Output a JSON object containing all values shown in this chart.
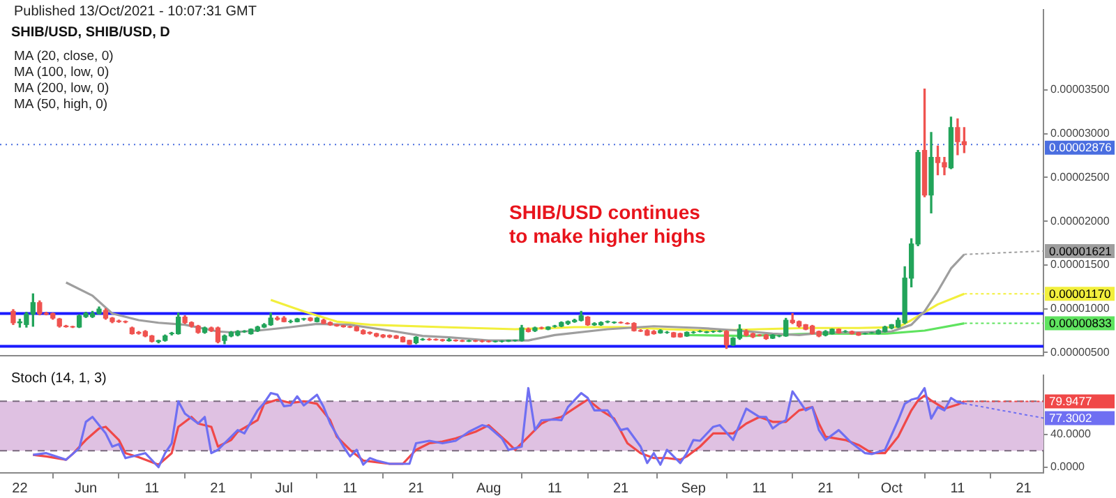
{
  "chart_data": [
    {
      "type": "candlestick",
      "title": "SHIB/USD, SHIB/USD, D",
      "subtitle": "Published 13/Oct/2021 - 10:07:31 GMT",
      "x": [
        "2021-05-21",
        "2021-05-22",
        "2021-05-23",
        "2021-05-24",
        "2021-05-25",
        "2021-05-26",
        "2021-05-27",
        "2021-05-28",
        "2021-05-29",
        "2021-05-30",
        "2021-05-31",
        "2021-06-01",
        "2021-06-02",
        "2021-06-03",
        "2021-06-04",
        "2021-06-05",
        "2021-06-06",
        "2021-06-07",
        "2021-06-08",
        "2021-06-09",
        "2021-06-10",
        "2021-06-11",
        "2021-06-12",
        "2021-06-13",
        "2021-06-14",
        "2021-06-15",
        "2021-06-16",
        "2021-06-17",
        "2021-06-18",
        "2021-06-19",
        "2021-06-20",
        "2021-06-21",
        "2021-06-22",
        "2021-06-23",
        "2021-06-24",
        "2021-06-25",
        "2021-06-26",
        "2021-06-27",
        "2021-06-28",
        "2021-06-29",
        "2021-06-30",
        "2021-07-01",
        "2021-07-02",
        "2021-07-03",
        "2021-07-04",
        "2021-07-05",
        "2021-07-06",
        "2021-07-07",
        "2021-07-08",
        "2021-07-09",
        "2021-07-10",
        "2021-07-11",
        "2021-07-12",
        "2021-07-13",
        "2021-07-14",
        "2021-07-15",
        "2021-07-16",
        "2021-07-17",
        "2021-07-18",
        "2021-07-19",
        "2021-07-20",
        "2021-07-21",
        "2021-07-22",
        "2021-07-23",
        "2021-07-24",
        "2021-07-25",
        "2021-07-26",
        "2021-07-27",
        "2021-07-28",
        "2021-07-29",
        "2021-07-30",
        "2021-07-31",
        "2021-08-01",
        "2021-08-02",
        "2021-08-03",
        "2021-08-04",
        "2021-08-05",
        "2021-08-06",
        "2021-08-07",
        "2021-08-08",
        "2021-08-09",
        "2021-08-10",
        "2021-08-11",
        "2021-08-12",
        "2021-08-13",
        "2021-08-14",
        "2021-08-15",
        "2021-08-16",
        "2021-08-17",
        "2021-08-18",
        "2021-08-19",
        "2021-08-20",
        "2021-08-21",
        "2021-08-22",
        "2021-08-23",
        "2021-08-24",
        "2021-08-25",
        "2021-08-26",
        "2021-08-27",
        "2021-08-28",
        "2021-08-29",
        "2021-08-30",
        "2021-08-31",
        "2021-09-01",
        "2021-09-02",
        "2021-09-03",
        "2021-09-04",
        "2021-09-05",
        "2021-09-06",
        "2021-09-07",
        "2021-09-08",
        "2021-09-09",
        "2021-09-10",
        "2021-09-11",
        "2021-09-12",
        "2021-09-13",
        "2021-09-14",
        "2021-09-15",
        "2021-09-16",
        "2021-09-17",
        "2021-09-18",
        "2021-09-19",
        "2021-09-20",
        "2021-09-21",
        "2021-09-22",
        "2021-09-23",
        "2021-09-24",
        "2021-09-25",
        "2021-09-26",
        "2021-09-27",
        "2021-09-28",
        "2021-09-29",
        "2021-09-30",
        "2021-10-01",
        "2021-10-02",
        "2021-10-03",
        "2021-10-04",
        "2021-10-05",
        "2021-10-06",
        "2021-10-07",
        "2021-10-08",
        "2021-10-09",
        "2021-10-10",
        "2021-10-11",
        "2021-10-12"
      ],
      "ohlc": [
        [
          9.7e-06,
          9.9e-06,
          8.2e-06,
          8.4e-06
        ],
        [
          8.4e-06,
          8.8e-06,
          7.9e-06,
          8.5e-06
        ],
        [
          8.2e-06,
          9.6e-06,
          7.9e-06,
          9.4e-06
        ],
        [
          9.4e-06,
          1.17e-05,
          8e-06,
          1.07e-05
        ],
        [
          1.07e-05,
          1.09e-05,
          9.3e-06,
          9.45e-06
        ],
        [
          9.45e-06,
          9.6e-06,
          9.3e-06,
          9.4e-06
        ],
        [
          9.45e-06,
          9.5e-06,
          8.8e-06,
          8.93e-06
        ],
        [
          8.83e-06,
          8.9e-06,
          7.9e-06,
          8.02e-06
        ],
        [
          8.02e-06,
          8.1e-06,
          7.9e-06,
          7.95e-06
        ],
        [
          7.95e-06,
          8e-06,
          7.85e-06,
          7.92e-06
        ],
        [
          7.91e-06,
          9.3e-06,
          7.85e-06,
          9.19e-06
        ],
        [
          9.1e-06,
          9.6e-06,
          9e-06,
          9.45e-06
        ],
        [
          9.1e-06,
          9.7e-06,
          9e-06,
          9.45e-06
        ],
        [
          9.45e-06,
          1.02e-05,
          9.4e-06,
          9.96e-06
        ],
        [
          9.8e-06,
          1e-05,
          8.8e-06,
          8.93e-06
        ],
        [
          8.93e-06,
          9e-06,
          8.4e-06,
          8.53e-06
        ],
        [
          8.6e-06,
          8.7e-06,
          8.45e-06,
          8.53e-06
        ],
        [
          8.53e-06,
          8.6e-06,
          8.4e-06,
          8.5e-06
        ],
        [
          7.81e-06,
          7.9e-06,
          7.1e-06,
          7.15e-06
        ],
        [
          7.3e-06,
          7.4e-06,
          7.1e-06,
          7.2e-06
        ],
        [
          7.4e-06,
          7.5e-06,
          6.8e-06,
          6.89e-06
        ],
        [
          6.89e-06,
          6.95e-06,
          6.2e-06,
          6.28e-06
        ],
        [
          6.25e-06,
          6.4e-06,
          6.1e-06,
          6.35e-06
        ],
        [
          6.38e-06,
          7e-06,
          6.3e-06,
          6.89e-06
        ],
        [
          7.15e-06,
          7.3e-06,
          7e-06,
          7.2e-06
        ],
        [
          7.15e-06,
          9.5e-06,
          7.1e-06,
          9.04e-06
        ],
        [
          9.04e-06,
          9.2e-06,
          8.3e-06,
          8.42e-06
        ],
        [
          8.42e-06,
          8.5e-06,
          7.9e-06,
          8.02e-06
        ],
        [
          8.02e-06,
          8.1e-06,
          7.2e-06,
          7.3e-06
        ],
        [
          7.3e-06,
          7.9e-06,
          7.2e-06,
          7.81e-06
        ],
        [
          7.81e-06,
          7.9e-06,
          7.4e-06,
          7.5e-06
        ],
        [
          7.81e-06,
          7.9e-06,
          6.1e-06,
          6.23e-06
        ],
        [
          6.38e-06,
          7e-06,
          6e-06,
          6.89e-06
        ],
        [
          6.89e-06,
          7.4e-06,
          6.8e-06,
          7.3e-06
        ],
        [
          7e-06,
          7.5e-06,
          6.9e-06,
          7.4e-06
        ],
        [
          7.4e-06,
          7.5e-06,
          7.3e-06,
          7.4e-06
        ],
        [
          7.15e-06,
          7.7e-06,
          7.1e-06,
          7.66e-06
        ],
        [
          7.5e-06,
          8e-06,
          7.4e-06,
          7.91e-06
        ],
        [
          7.91e-06,
          8.3e-06,
          7.85e-06,
          8.17e-06
        ],
        [
          8.17e-06,
          9.5e-06,
          8.1e-06,
          8.93e-06
        ],
        [
          8.93e-06,
          9.1e-06,
          8.7e-06,
          8.8e-06
        ],
        [
          8.93e-06,
          9.1e-06,
          8.5e-06,
          8.53e-06
        ],
        [
          8.53e-06,
          8.7e-06,
          8.4e-06,
          8.55e-06
        ],
        [
          8.53e-06,
          8.9e-06,
          8.5e-06,
          8.83e-06
        ],
        [
          8.83e-06,
          8.9e-06,
          8.7e-06,
          8.85e-06
        ],
        [
          8.93e-06,
          9e-06,
          8.6e-06,
          8.68e-06
        ],
        [
          8.53e-06,
          9e-06,
          8.5e-06,
          8.93e-06
        ],
        [
          8.68e-06,
          8.8e-06,
          8.3e-06,
          8.32e-06
        ],
        [
          8.42e-06,
          8.5e-06,
          8.1e-06,
          8.17e-06
        ],
        [
          8.17e-06,
          8.2e-06,
          8e-06,
          8.05e-06
        ],
        [
          8.05e-06,
          8.1e-06,
          7.9e-06,
          7.95e-06
        ],
        [
          7.95e-06,
          8e-06,
          7.85e-06,
          7.9e-06
        ],
        [
          7.91e-06,
          8e-06,
          7.45e-06,
          7.5e-06
        ],
        [
          7.5e-06,
          7.6e-06,
          7.1e-06,
          7.15e-06
        ],
        [
          7.3e-06,
          7.35e-06,
          7.1e-06,
          7.2e-06
        ],
        [
          7.15e-06,
          7.2e-06,
          6.8e-06,
          6.89e-06
        ],
        [
          6.99e-06,
          7.05e-06,
          6.7e-06,
          6.79e-06
        ],
        [
          6.94e-06,
          7e-06,
          6.7e-06,
          6.79e-06
        ],
        [
          6.89e-06,
          6.95e-06,
          6.6e-06,
          6.64e-06
        ],
        [
          6.74e-06,
          6.8e-06,
          6.2e-06,
          6.23e-06
        ],
        [
          6.38e-06,
          6.4e-06,
          5.9e-06,
          5.97e-06
        ],
        [
          6.12e-06,
          6.8e-06,
          6e-06,
          6.74e-06
        ],
        [
          6.48e-06,
          6.6e-06,
          6.4e-06,
          6.5e-06
        ],
        [
          6.5e-06,
          6.6e-06,
          6.4e-06,
          6.48e-06
        ],
        [
          6.48e-06,
          6.55e-06,
          6.4e-06,
          6.45e-06
        ],
        [
          6.45e-06,
          6.5e-06,
          6.3e-06,
          6.38e-06
        ],
        [
          6.35e-06,
          6.6e-06,
          6.3e-06,
          6.45e-06
        ],
        [
          6.4e-06,
          6.45e-06,
          6.3e-06,
          6.35e-06
        ],
        [
          6.35e-06,
          6.4e-06,
          6.25e-06,
          6.3e-06
        ],
        [
          6.3e-06,
          6.4e-06,
          6.25e-06,
          6.33e-06
        ],
        [
          6.33e-06,
          6.4e-06,
          6.25e-06,
          6.3e-06
        ],
        [
          6.3e-06,
          6.4e-06,
          6.2e-06,
          6.28e-06
        ],
        [
          6.28e-06,
          6.35e-06,
          6.2e-06,
          6.25e-06
        ],
        [
          6.25e-06,
          6.3e-06,
          6.2e-06,
          6.28e-06
        ],
        [
          6.28e-06,
          6.35e-06,
          6.2e-06,
          6.3e-06
        ],
        [
          6.3e-06,
          6.4e-06,
          6.25e-06,
          6.38e-06
        ],
        [
          6.38e-06,
          6.42e-06,
          6.3e-06,
          6.4e-06
        ],
        [
          6.38e-06,
          8.1e-06,
          6.3e-06,
          7.81e-06
        ],
        [
          7.66e-06,
          7.8e-06,
          7.35e-06,
          7.4e-06
        ],
        [
          7.5e-06,
          7.9e-06,
          7.4e-06,
          7.81e-06
        ],
        [
          7.81e-06,
          7.9e-06,
          7.7e-06,
          7.8e-06
        ],
        [
          7.66e-06,
          7.95e-06,
          7.6e-06,
          7.91e-06
        ],
        [
          8e-06,
          8.1e-06,
          7.9e-06,
          8.02e-06
        ],
        [
          8.02e-06,
          8.5e-06,
          7.95e-06,
          8.42e-06
        ],
        [
          8.32e-06,
          8.6e-06,
          8.2e-06,
          8.53e-06
        ],
        [
          8.53e-06,
          8.8e-06,
          8.45e-06,
          8.68e-06
        ],
        [
          8.68e-06,
          9.7e-06,
          8.6e-06,
          9.19e-06
        ],
        [
          9.04e-06,
          9.1e-06,
          8.1e-06,
          8.17e-06
        ],
        [
          8.17e-06,
          8.4e-06,
          8.1e-06,
          8.3e-06
        ],
        [
          8.17e-06,
          8.5e-06,
          8.1e-06,
          8.42e-06
        ],
        [
          8.5e-06,
          8.6e-06,
          8.4e-06,
          8.53e-06
        ],
        [
          8.42e-06,
          8.5e-06,
          8.35e-06,
          8.45e-06
        ],
        [
          8.42e-06,
          8.5e-06,
          8.35e-06,
          8.4e-06
        ],
        [
          8.32e-06,
          8.4e-06,
          8.25e-06,
          8.3e-06
        ],
        [
          8.32e-06,
          8.4e-06,
          7.45e-06,
          7.5e-06
        ],
        [
          7.5e-06,
          7.6e-06,
          7.4e-06,
          7.45e-06
        ],
        [
          7.5e-06,
          7.6e-06,
          6.95e-06,
          6.99e-06
        ],
        [
          7.4e-06,
          7.5e-06,
          7.1e-06,
          7.15e-06
        ],
        [
          7.25e-06,
          7.6e-06,
          7.2e-06,
          7.5e-06
        ],
        [
          7.3e-06,
          7.4e-06,
          7.2e-06,
          7.3e-06
        ],
        [
          7.25e-06,
          7.3e-06,
          6.75e-06,
          6.79e-06
        ],
        [
          7.15e-06,
          7.2e-06,
          6.75e-06,
          6.79e-06
        ],
        [
          6.89e-06,
          7.35e-06,
          6.85e-06,
          7.3e-06
        ],
        [
          7.3e-06,
          7.4e-06,
          7.2e-06,
          7.3e-06
        ],
        [
          7.4e-06,
          7.5e-06,
          7.35e-06,
          7.4e-06
        ],
        [
          7.3e-06,
          7.4e-06,
          7.25e-06,
          7.35e-06
        ],
        [
          7.4e-06,
          7.45e-06,
          7.3e-06,
          7.4e-06
        ],
        [
          7.4e-06,
          7.5e-06,
          7.35e-06,
          7.42e-06
        ],
        [
          7.4e-06,
          7.5e-06,
          5.46e-06,
          5.87e-06
        ],
        [
          5.87e-06,
          6.7e-06,
          5.8e-06,
          6.64e-06
        ],
        [
          6.64e-06,
          8.17e-06,
          6.5e-06,
          7.66e-06
        ],
        [
          7.4e-06,
          7.6e-06,
          6.9e-06,
          6.99e-06
        ],
        [
          7.15e-06,
          7.2e-06,
          6.7e-06,
          6.79e-06
        ],
        [
          6.99e-06,
          7.05e-06,
          6.9e-06,
          6.95e-06
        ],
        [
          6.99e-06,
          7.05e-06,
          6.5e-06,
          6.59e-06
        ],
        [
          6.64e-06,
          7.05e-06,
          6.6e-06,
          6.99e-06
        ],
        [
          6.89e-06,
          6.95e-06,
          6.8e-06,
          6.9e-06
        ],
        [
          6.89e-06,
          8.9e-06,
          6.85e-06,
          8.68e-06
        ],
        [
          8.68e-06,
          9.45e-06,
          8.3e-06,
          8.42e-06
        ],
        [
          8.53e-06,
          8.6e-06,
          7.9e-06,
          8.02e-06
        ],
        [
          8.17e-06,
          8.2e-06,
          7.6e-06,
          7.66e-06
        ],
        [
          8.02e-06,
          8.1e-06,
          7.1e-06,
          7.15e-06
        ],
        [
          7.4e-06,
          7.45e-06,
          6.8e-06,
          6.89e-06
        ],
        [
          6.99e-06,
          7.5e-06,
          6.9e-06,
          7.4e-06
        ],
        [
          7.15e-06,
          7.7e-06,
          7.1e-06,
          7.66e-06
        ],
        [
          7.66e-06,
          7.7e-06,
          7.2e-06,
          7.25e-06
        ],
        [
          7.4e-06,
          7.5e-06,
          7.3e-06,
          7.4e-06
        ],
        [
          7.4e-06,
          7.45e-06,
          7.1e-06,
          7.15e-06
        ],
        [
          7.25e-06,
          7.3e-06,
          6.95e-06,
          6.99e-06
        ],
        [
          7.15e-06,
          7.2e-06,
          7.1e-06,
          7.15e-06
        ],
        [
          7.25e-06,
          7.3e-06,
          7.2e-06,
          7.25e-06
        ],
        [
          7.15e-06,
          7.6e-06,
          7.1e-06,
          7.5e-06
        ],
        [
          7.4e-06,
          8e-06,
          7.35e-06,
          7.91e-06
        ],
        [
          7.81e-06,
          8.2e-06,
          7.7e-06,
          8.17e-06
        ],
        [
          7.91e-06,
          8.93e-06,
          7.85e-06,
          8.68e-06
        ],
        [
          8.43e-06,
          1.48e-05,
          8.3e-06,
          1.35e-05
        ],
        [
          1.35e-05,
          1.8e-05,
          1.25e-05,
          1.74e-05
        ],
        [
          1.74e-05,
          2.81e-05,
          1.72e-05,
          2.785e-05
        ],
        [
          2.81e-05,
          3.51e-05,
          2.28e-05,
          2.3e-05
        ],
        [
          2.3e-05,
          3.015e-05,
          2.095e-05,
          2.73e-05
        ],
        [
          2.73e-05,
          2.86e-05,
          2.53e-05,
          2.67e-05
        ],
        [
          2.67e-05,
          2.73e-05,
          2.53e-05,
          2.62e-05
        ],
        [
          2.61e-05,
          3.19e-05,
          2.6e-05,
          3.07e-05
        ],
        [
          3.07e-05,
          3.17e-05,
          2.76e-05,
          2.91e-05
        ],
        [
          2.91e-05,
          3.07e-05,
          2.785e-05,
          2.876e-05
        ]
      ],
      "series": [
        {
          "type": "line",
          "color": "#9e9e9e",
          "x": [
            "2021-05-29",
            "2021-06-02",
            "2021-06-05",
            "2021-06-09",
            "2021-06-12",
            "2021-06-16",
            "2021-06-21",
            "2021-06-23",
            "2021-06-27",
            "2021-07-02",
            "2021-07-06",
            "2021-07-11",
            "2021-07-17",
            "2021-07-22",
            "2021-07-26",
            "2021-08-01",
            "2021-08-07",
            "2021-08-11",
            "2021-08-19",
            "2021-08-26",
            "2021-09-02",
            "2021-09-08",
            "2021-09-13",
            "2021-09-17",
            "2021-09-21",
            "2021-09-26",
            "2021-10-01",
            "2021-10-04",
            "2021-10-06",
            "2021-10-08",
            "2021-10-10",
            "2021-10-12"
          ],
          "values": [
            1.3e-05,
            1.15e-05,
            9.45e-06,
            8.7e-06,
            8.4e-06,
            8.17e-06,
            7.4e-06,
            7.3e-06,
            7.5e-06,
            7.9e-06,
            8.27e-06,
            8.17e-06,
            7.5e-06,
            6.89e-06,
            6.74e-06,
            6.38e-06,
            6.38e-06,
            6.99e-06,
            7.66e-06,
            8e-06,
            7.8e-06,
            7.5e-06,
            7.15e-06,
            6.99e-06,
            7.3e-06,
            7.3e-06,
            7.4e-06,
            8.17e-06,
            9.7e-06,
            1.2e-05,
            1.46e-05,
            1.621e-05
          ]
        },
        {
          "type": "line",
          "color": "#f2ef3c",
          "x": [
            "2021-06-29",
            "2021-07-04",
            "2021-07-09",
            "2021-07-14",
            "2021-07-25",
            "2021-08-05",
            "2021-08-11",
            "2021-08-14",
            "2021-08-21",
            "2021-08-28",
            "2021-09-04",
            "2021-09-11",
            "2021-09-18",
            "2021-09-26",
            "2021-10-02",
            "2021-10-04",
            "2021-10-08",
            "2021-10-12"
          ],
          "values": [
            1.1e-05,
            9.7e-06,
            8.53e-06,
            8.17e-06,
            7.9e-06,
            7.66e-06,
            7.8e-06,
            7.9e-06,
            7.9e-06,
            7.66e-06,
            7.5e-06,
            7.66e-06,
            7.8e-06,
            7.8e-06,
            7.9e-06,
            8.7e-06,
            1.05e-05,
            1.17e-05
          ]
        },
        {
          "type": "line",
          "color": "#5fe35f",
          "x": [
            "2021-08-31",
            "2021-09-09",
            "2021-09-19",
            "2021-09-30",
            "2021-10-06",
            "2021-10-12"
          ],
          "values": [
            6.99e-06,
            6.89e-06,
            7.15e-06,
            7.15e-06,
            7.5e-06,
            8.33e-06
          ]
        }
      ],
      "ref_lines": [
        {
          "axis": "y",
          "value": 9.45e-06,
          "color": "#1a1aff"
        },
        {
          "axis": "y",
          "value": 5.7e-06,
          "color": "#1a1aff"
        },
        {
          "axis": "y",
          "value": 2.876e-05,
          "label": "0.00002876",
          "color": "#4a6ee0",
          "line_style": "dotted"
        }
      ],
      "annotations": [
        "MA (20, close, 0)",
        "MA (100, low, 0)",
        "MA (200, low, 0)",
        "MA (50, high, 0)",
        {
          "text": "0.00001621",
          "x": "2021-10-12",
          "y": 1.621e-05
        },
        {
          "text": "0.00001170",
          "x": "2021-10-12",
          "y": 1.17e-05
        },
        {
          "text": "0.00000833",
          "x": "2021-10-12",
          "y": 8.33e-06
        },
        "SHIB/USD continues to make higher highs"
      ],
      "xlim": [
        "2021-05-19",
        "2021-10-24"
      ],
      "ylim": [
        4.6e-06,
        4.42e-05
      ],
      "yticks": [
        {
          "value": 5e-06,
          "label": "0.00000500"
        },
        {
          "value": 1e-05,
          "label": "0.00001000"
        },
        {
          "value": 1.5e-05,
          "label": "0.00001500"
        },
        {
          "value": 2e-05,
          "label": "0.00002000"
        },
        {
          "value": 2.5e-05,
          "label": "0.00002500"
        },
        {
          "value": 3e-05,
          "label": "0.00003000"
        },
        {
          "value": 3.5e-05,
          "label": "0.00003500"
        }
      ],
      "tick_labels": "y"
    },
    {
      "type": "line",
      "title": "Stoch (14, 1, 3)",
      "series": [
        {
          "color": "#6f6ff2",
          "x": [
            "2021-05-24",
            "2021-05-26",
            "2021-05-29",
            "2021-05-31",
            "2021-06-01",
            "2021-06-02",
            "2021-06-04",
            "2021-06-05",
            "2021-06-06",
            "2021-06-07",
            "2021-06-10",
            "2021-06-12",
            "2021-06-13",
            "2021-06-14",
            "2021-06-15",
            "2021-06-16",
            "2021-06-18",
            "2021-06-19",
            "2021-06-20",
            "2021-06-21",
            "2021-06-23",
            "2021-06-24",
            "2021-06-25",
            "2021-06-27",
            "2021-06-28",
            "2021-06-29",
            "2021-06-30",
            "2021-07-01",
            "2021-07-02",
            "2021-07-03",
            "2021-07-04",
            "2021-07-06",
            "2021-07-07",
            "2021-07-08",
            "2021-07-10",
            "2021-07-11",
            "2021-07-12",
            "2021-07-13",
            "2021-07-14",
            "2021-07-15",
            "2021-07-17",
            "2021-07-20",
            "2021-07-21",
            "2021-07-23",
            "2021-07-25",
            "2021-07-27",
            "2021-07-29",
            "2021-07-31",
            "2021-08-01",
            "2021-08-03",
            "2021-08-04",
            "2021-08-06",
            "2021-08-07",
            "2021-08-08",
            "2021-08-09",
            "2021-08-11",
            "2021-08-12",
            "2021-08-13",
            "2021-08-15",
            "2021-08-16",
            "2021-08-17",
            "2021-08-19",
            "2021-08-21",
            "2021-08-22",
            "2021-08-24",
            "2021-08-25",
            "2021-08-26",
            "2021-08-27",
            "2021-08-28",
            "2021-08-30",
            "2021-08-31",
            "2021-09-01",
            "2021-09-02",
            "2021-09-04",
            "2021-09-05",
            "2021-09-07",
            "2021-09-09",
            "2021-09-11",
            "2021-09-12",
            "2021-09-13",
            "2021-09-14",
            "2021-09-15",
            "2021-09-16",
            "2021-09-18",
            "2021-09-19",
            "2021-09-20",
            "2021-09-21",
            "2021-09-23",
            "2021-09-25",
            "2021-09-27",
            "2021-09-28",
            "2021-09-30",
            "2021-10-02",
            "2021-10-03",
            "2021-10-04",
            "2021-10-05",
            "2021-10-06",
            "2021-10-07",
            "2021-10-08",
            "2021-10-09",
            "2021-10-10",
            "2021-10-11",
            "2021-10-12"
          ],
          "values": [
            15,
            17,
            9,
            23,
            55,
            61,
            41,
            25,
            28,
            11,
            17,
            0,
            17,
            29,
            80,
            65,
            53,
            61,
            17,
            21,
            37,
            45,
            41,
            69,
            78,
            90,
            88,
            74,
            75,
            86,
            75,
            88,
            73,
            53,
            25,
            13,
            21,
            3,
            11,
            8,
            4,
            4,
            29,
            32,
            29,
            32,
            43,
            51,
            49,
            35,
            21,
            25,
            96,
            45,
            57,
            58,
            57,
            73,
            90,
            84,
            69,
            69,
            45,
            47,
            25,
            5,
            17,
            3,
            21,
            5,
            17,
            33,
            32,
            49,
            51,
            33,
            71,
            61,
            61,
            47,
            53,
            57,
            92,
            69,
            73,
            45,
            33,
            45,
            29,
            17,
            16,
            21,
            57,
            77,
            82,
            84,
            96,
            59,
            73,
            69,
            84,
            79,
            77.3
          ]
        },
        {
          "color": "#f04848",
          "x": [
            "2021-05-24",
            "2021-05-26",
            "2021-05-29",
            "2021-05-30",
            "2021-06-01",
            "2021-06-03",
            "2021-06-04",
            "2021-06-06",
            "2021-06-07",
            "2021-06-09",
            "2021-06-12",
            "2021-06-14",
            "2021-06-15",
            "2021-06-17",
            "2021-06-18",
            "2021-06-20",
            "2021-06-21",
            "2021-06-23",
            "2021-06-24",
            "2021-06-27",
            "2021-06-28",
            "2021-06-30",
            "2021-07-02",
            "2021-07-04",
            "2021-07-06",
            "2021-07-08",
            "2021-07-09",
            "2021-07-11",
            "2021-07-13",
            "2021-07-15",
            "2021-07-17",
            "2021-07-19",
            "2021-07-21",
            "2021-07-23",
            "2021-07-25",
            "2021-07-27",
            "2021-07-30",
            "2021-08-01",
            "2021-08-04",
            "2021-08-05",
            "2021-08-07",
            "2021-08-09",
            "2021-08-10",
            "2021-08-12",
            "2021-08-15",
            "2021-08-16",
            "2021-08-18",
            "2021-08-20",
            "2021-08-22",
            "2021-08-24",
            "2021-08-26",
            "2021-08-28",
            "2021-08-30",
            "2021-08-31",
            "2021-09-02",
            "2021-09-04",
            "2021-09-07",
            "2021-09-09",
            "2021-09-11",
            "2021-09-13",
            "2021-09-15",
            "2021-09-17",
            "2021-09-19",
            "2021-09-20",
            "2021-09-21",
            "2021-09-24",
            "2021-09-26",
            "2021-09-28",
            "2021-09-30",
            "2021-10-02",
            "2021-10-04",
            "2021-10-05",
            "2021-10-06",
            "2021-10-07",
            "2021-10-09",
            "2021-10-11",
            "2021-10-12"
          ],
          "values": [
            15,
            13,
            9,
            16,
            33,
            47,
            49,
            33,
            17,
            12,
            3,
            17,
            49,
            61,
            53,
            49,
            25,
            33,
            43,
            57,
            77,
            82,
            78,
            80,
            77,
            57,
            37,
            21,
            8,
            6,
            4,
            4,
            21,
            29,
            31,
            35,
            43,
            51,
            29,
            21,
            37,
            53,
            57,
            61,
            77,
            82,
            69,
            59,
            29,
            17,
            11,
            11,
            9,
            13,
            25,
            41,
            41,
            53,
            61,
            55,
            55,
            69,
            73,
            53,
            37,
            33,
            27,
            17,
            17,
            37,
            69,
            81,
            87,
            81,
            71,
            76,
            79.9
          ]
        }
      ],
      "bands": [
        {
          "axis": "y",
          "from": 20,
          "to": 80,
          "color": "#dfc1e2"
        }
      ],
      "ref_lines": [
        {
          "axis": "y",
          "value": 20,
          "color": "#7a6a7e",
          "line_style": "dashed"
        },
        {
          "axis": "y",
          "value": 80,
          "color": "#7a6a7e",
          "line_style": "dashed"
        }
      ],
      "annotations": [
        {
          "text": "79.9477",
          "x": "2021-10-12",
          "y": 79.9477
        },
        {
          "text": "77.3002",
          "x": "2021-10-12",
          "y": 77.3002
        }
      ],
      "xlim": [
        "2021-05-19",
        "2021-10-24"
      ],
      "xticks": [
        {
          "value": "2021-05-22",
          "label": "22"
        },
        {
          "value": "2021-06-01",
          "label": "Jun"
        },
        {
          "value": "2021-06-11",
          "label": "11"
        },
        {
          "value": "2021-06-21",
          "label": "21"
        },
        {
          "value": "2021-07-01",
          "label": "Jul"
        },
        {
          "value": "2021-07-11",
          "label": "11"
        },
        {
          "value": "2021-07-21",
          "label": "21"
        },
        {
          "value": "2021-08-01",
          "label": "Aug"
        },
        {
          "value": "2021-08-11",
          "label": "11"
        },
        {
          "value": "2021-08-21",
          "label": "21"
        },
        {
          "value": "2021-09-01",
          "label": "Sep"
        },
        {
          "value": "2021-09-11",
          "label": "11"
        },
        {
          "value": "2021-09-21",
          "label": "21"
        },
        {
          "value": "2021-10-01",
          "label": "Oct"
        },
        {
          "value": "2021-10-11",
          "label": "11"
        },
        {
          "value": "2021-10-21",
          "label": "21"
        }
      ],
      "ylim": [
        -7,
        112
      ],
      "yticks": [
        {
          "value": 0,
          "label": "0.0000"
        },
        {
          "value": 40,
          "label": "40.0000"
        }
      ]
    }
  ]
}
